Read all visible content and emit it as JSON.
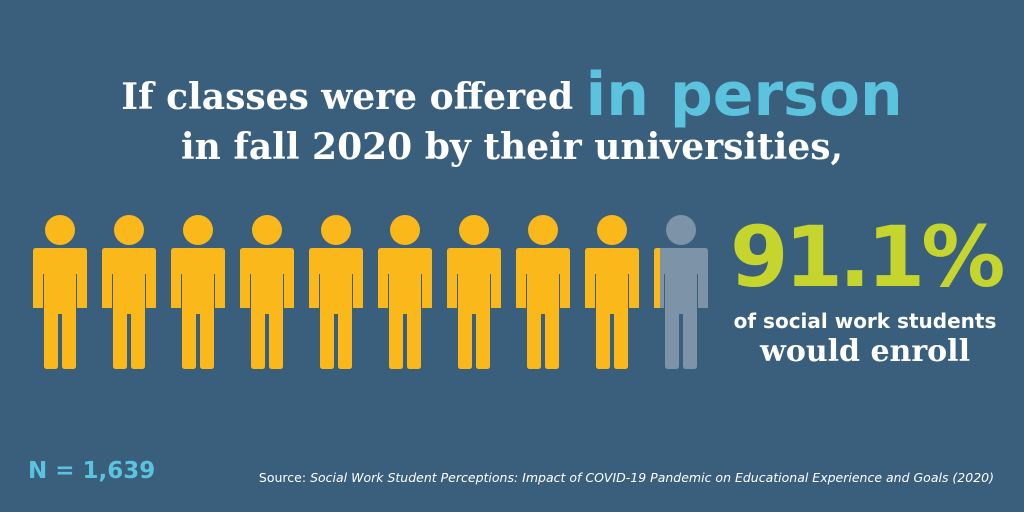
{
  "headline": {
    "line1_prefix": "If classes were offered",
    "line1_highlight": "in person",
    "line2": "in fall 2020 by their universities,"
  },
  "stat": {
    "percent": "91.1%",
    "desc_line1": "of social work students",
    "desc_line2": "would enroll"
  },
  "sample": "N = 1,639",
  "source": {
    "prefix": "Source:",
    "title": "Social Work Student Perceptions: Impact of COVID-19 Pandemic on Educational Experience and Goals (2020)"
  },
  "chart_data": {
    "type": "pictograph",
    "icon": "person-icon",
    "total_icons": 10,
    "filled_fraction": 0.911,
    "value": 91.1,
    "unit": "%",
    "colors": {
      "filled": "#fbb81b",
      "empty": "#7c93a8",
      "background": "#3a5f7d",
      "highlight": "#5cc3df",
      "stat": "#c6d52e"
    }
  }
}
